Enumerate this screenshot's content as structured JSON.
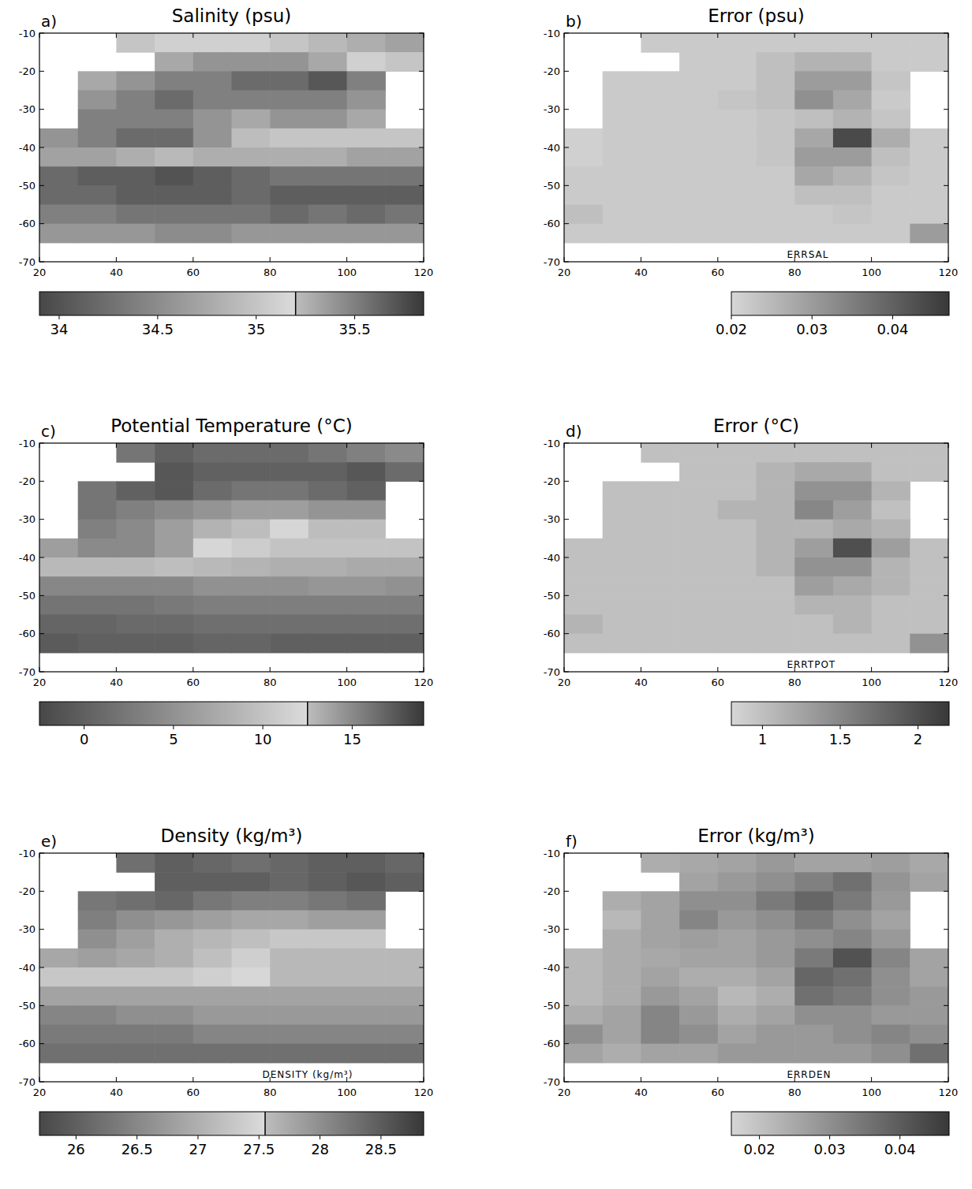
{
  "chart_data": [
    {
      "type": "heatmap",
      "title": "Salinity (psu)",
      "panel_label": "a)",
      "x": [
        25,
        35,
        45,
        55,
        65,
        75,
        85,
        95,
        105,
        115
      ],
      "y": [
        -12.5,
        -17.5,
        -22.5,
        -27.5,
        -32.5,
        -37.5,
        -42.5,
        -47.5,
        -52.5,
        -57.5,
        -62.5,
        -67.5
      ],
      "xlim": [
        20,
        120
      ],
      "ylim": [
        -70,
        -10
      ],
      "xticks": [
        20,
        40,
        60,
        80,
        100,
        120
      ],
      "yticks": [
        -10,
        -20,
        -30,
        -40,
        -50,
        -60,
        -70
      ],
      "colorbar_range": [
        33.9,
        35.85
      ],
      "colorbar_ticks": [
        34,
        34.5,
        35,
        35.5
      ],
      "colorbar_break": 35.2,
      "cells": [
        [
          null,
          null,
          35.0,
          35.1,
          35.1,
          35.1,
          35.0,
          34.9,
          34.8,
          34.7
        ],
        [
          null,
          null,
          null,
          35.3,
          35.4,
          35.4,
          35.4,
          35.3,
          35.1,
          35.0
        ],
        [
          null,
          35.3,
          35.4,
          35.5,
          35.5,
          35.6,
          35.6,
          35.7,
          35.5,
          null
        ],
        [
          null,
          35.4,
          35.5,
          35.6,
          35.5,
          35.5,
          35.5,
          35.5,
          35.4,
          null
        ],
        [
          null,
          35.5,
          35.5,
          35.5,
          35.4,
          35.3,
          35.4,
          35.4,
          35.3,
          null
        ],
        [
          35.4,
          35.5,
          35.6,
          35.6,
          35.4,
          35.2,
          35.0,
          35.0,
          35.0,
          35.0
        ],
        [
          34.7,
          34.7,
          34.8,
          34.9,
          34.8,
          34.8,
          34.8,
          34.8,
          34.7,
          34.7
        ],
        [
          34.2,
          34.1,
          34.1,
          34.0,
          34.1,
          34.2,
          34.3,
          34.3,
          34.3,
          34.3
        ],
        [
          34.2,
          34.2,
          34.1,
          34.1,
          34.1,
          34.2,
          34.1,
          34.1,
          34.1,
          34.1
        ],
        [
          34.4,
          34.4,
          34.3,
          34.3,
          34.3,
          34.3,
          34.2,
          34.3,
          34.2,
          34.3
        ],
        [
          34.6,
          34.6,
          34.6,
          34.5,
          34.5,
          34.6,
          34.6,
          34.6,
          34.6,
          34.6
        ],
        [
          null,
          null,
          null,
          null,
          null,
          null,
          null,
          null,
          null,
          null
        ]
      ]
    },
    {
      "type": "heatmap",
      "title": "Error (psu)",
      "panel_label": "b)",
      "annotation": "ERRSAL",
      "x": [
        25,
        35,
        45,
        55,
        65,
        75,
        85,
        95,
        105,
        115
      ],
      "y": [
        -12.5,
        -17.5,
        -22.5,
        -27.5,
        -32.5,
        -37.5,
        -42.5,
        -47.5,
        -52.5,
        -57.5,
        -62.5,
        -67.5
      ],
      "xlim": [
        20,
        120
      ],
      "ylim": [
        -70,
        -10
      ],
      "xticks": [
        20,
        40,
        60,
        80,
        100,
        120
      ],
      "yticks": [
        -10,
        -20,
        -30,
        -40,
        -50,
        -60,
        -70
      ],
      "colorbar_range": [
        0.02,
        0.047
      ],
      "colorbar_ticks": [
        0.02,
        0.03,
        0.04
      ],
      "cells": [
        [
          null,
          null,
          0.022,
          0.022,
          0.022,
          0.022,
          0.022,
          0.022,
          0.022,
          0.022
        ],
        [
          null,
          null,
          null,
          0.022,
          0.022,
          0.024,
          0.026,
          0.026,
          0.022,
          0.022
        ],
        [
          null,
          0.022,
          0.022,
          0.022,
          0.022,
          0.024,
          0.03,
          0.03,
          0.023,
          null
        ],
        [
          null,
          0.022,
          0.022,
          0.022,
          0.023,
          0.024,
          0.032,
          0.028,
          0.022,
          null
        ],
        [
          null,
          0.022,
          0.022,
          0.022,
          0.022,
          0.023,
          0.024,
          0.026,
          0.023,
          null
        ],
        [
          0.021,
          0.022,
          0.022,
          0.022,
          0.022,
          0.023,
          0.028,
          0.044,
          0.027,
          0.022
        ],
        [
          0.021,
          0.022,
          0.022,
          0.022,
          0.022,
          0.023,
          0.03,
          0.03,
          0.024,
          0.022
        ],
        [
          0.022,
          0.022,
          0.022,
          0.022,
          0.022,
          0.022,
          0.028,
          0.026,
          0.023,
          0.022
        ],
        [
          0.022,
          0.022,
          0.022,
          0.022,
          0.022,
          0.022,
          0.024,
          0.024,
          0.022,
          0.022
        ],
        [
          0.024,
          0.022,
          0.022,
          0.022,
          0.022,
          0.022,
          0.022,
          0.023,
          0.022,
          0.022
        ],
        [
          0.022,
          0.022,
          0.022,
          0.022,
          0.022,
          0.022,
          0.022,
          0.022,
          0.022,
          0.03
        ],
        [
          null,
          null,
          null,
          null,
          null,
          null,
          null,
          null,
          null,
          null
        ]
      ]
    },
    {
      "type": "heatmap",
      "title": "Potential Temperature (°C)",
      "panel_label": "c)",
      "x": [
        25,
        35,
        45,
        55,
        65,
        75,
        85,
        95,
        105,
        115
      ],
      "y": [
        -12.5,
        -17.5,
        -22.5,
        -27.5,
        -32.5,
        -37.5,
        -42.5,
        -47.5,
        -52.5,
        -57.5,
        -62.5,
        -67.5
      ],
      "xlim": [
        20,
        120
      ],
      "ylim": [
        -70,
        -10
      ],
      "xticks": [
        20,
        40,
        60,
        80,
        100,
        120
      ],
      "yticks": [
        -10,
        -20,
        -30,
        -40,
        -50,
        -60,
        -70
      ],
      "colorbar_range": [
        -2.5,
        19
      ],
      "colorbar_ticks": [
        0,
        5,
        10,
        15
      ],
      "colorbar_break": 12.5,
      "cells": [
        [
          null,
          null,
          16,
          17,
          16.5,
          16.5,
          16.5,
          16,
          15.5,
          15
        ],
        [
          null,
          null,
          null,
          17.5,
          17,
          17,
          17,
          17,
          17.5,
          16.5
        ],
        [
          null,
          16,
          17,
          17.5,
          16.5,
          16,
          16,
          16.5,
          17,
          null
        ],
        [
          null,
          16,
          15.5,
          15,
          14.5,
          14,
          14,
          14.5,
          14.5,
          null
        ],
        [
          null,
          15.5,
          15,
          14,
          13,
          12.5,
          12,
          12.5,
          12.5,
          null
        ],
        [
          14,
          15,
          15,
          14,
          12,
          11,
          10,
          10,
          10,
          10
        ],
        [
          9,
          9,
          9,
          9.5,
          9,
          8.5,
          8,
          8,
          7.5,
          7.5
        ],
        [
          4,
          4,
          4,
          4,
          5,
          5,
          5,
          5.5,
          5.5,
          5
        ],
        [
          2,
          2,
          2,
          2.5,
          3,
          3,
          3,
          3,
          3,
          3
        ],
        [
          0.5,
          0.5,
          1,
          1,
          1.5,
          1.5,
          1.5,
          1.5,
          1.5,
          1.5
        ],
        [
          -0.5,
          0,
          0,
          0,
          0.5,
          0.5,
          0,
          0,
          0,
          0
        ],
        [
          null,
          null,
          null,
          null,
          null,
          null,
          null,
          null,
          null,
          null
        ]
      ]
    },
    {
      "type": "heatmap",
      "title": "Error (°C)",
      "panel_label": "d)",
      "annotation": "ERRTPOT",
      "x": [
        25,
        35,
        45,
        55,
        65,
        75,
        85,
        95,
        105,
        115
      ],
      "y": [
        -12.5,
        -17.5,
        -22.5,
        -27.5,
        -32.5,
        -37.5,
        -42.5,
        -47.5,
        -52.5,
        -57.5,
        -62.5,
        -67.5
      ],
      "xlim": [
        20,
        120
      ],
      "ylim": [
        -70,
        -10
      ],
      "xticks": [
        20,
        40,
        60,
        80,
        100,
        120
      ],
      "yticks": [
        -10,
        -20,
        -30,
        -40,
        -50,
        -60,
        -70
      ],
      "colorbar_range": [
        0.8,
        2.2
      ],
      "colorbar_ticks": [
        1,
        1.5,
        2
      ],
      "cells": [
        [
          null,
          null,
          1.0,
          1.0,
          1.0,
          1.0,
          1.0,
          1.0,
          1.0,
          1.0
        ],
        [
          null,
          null,
          null,
          1.0,
          1.0,
          1.1,
          1.2,
          1.2,
          1.0,
          1.0
        ],
        [
          null,
          1.0,
          1.0,
          1.0,
          1.0,
          1.1,
          1.4,
          1.4,
          1.1,
          null
        ],
        [
          null,
          1.0,
          1.0,
          1.0,
          1.1,
          1.1,
          1.5,
          1.3,
          1.0,
          null
        ],
        [
          null,
          1.0,
          1.0,
          1.0,
          1.0,
          1.1,
          1.1,
          1.2,
          1.1,
          null
        ],
        [
          1.0,
          1.0,
          1.0,
          1.0,
          1.0,
          1.1,
          1.3,
          2.0,
          1.3,
          1.0
        ],
        [
          1.0,
          1.0,
          1.0,
          1.0,
          1.0,
          1.1,
          1.4,
          1.4,
          1.1,
          1.0
        ],
        [
          1.0,
          1.0,
          1.0,
          1.0,
          1.0,
          1.0,
          1.3,
          1.2,
          1.1,
          1.0
        ],
        [
          1.0,
          1.0,
          1.0,
          1.0,
          1.0,
          1.0,
          1.1,
          1.1,
          1.0,
          1.0
        ],
        [
          1.1,
          1.0,
          1.0,
          1.0,
          1.0,
          1.0,
          1.0,
          1.1,
          1.0,
          1.0
        ],
        [
          1.0,
          1.0,
          1.0,
          1.0,
          1.0,
          1.0,
          1.0,
          1.0,
          1.0,
          1.4
        ],
        [
          null,
          null,
          null,
          null,
          null,
          null,
          null,
          null,
          null,
          null
        ]
      ]
    },
    {
      "type": "heatmap",
      "title": "Density (kg/m³)",
      "panel_label": "e)",
      "annotation": "DENSITY (kg/m³)",
      "x": [
        25,
        35,
        45,
        55,
        65,
        75,
        85,
        95,
        105,
        115
      ],
      "y": [
        -12.5,
        -17.5,
        -22.5,
        -27.5,
        -32.5,
        -37.5,
        -42.5,
        -47.5,
        -52.5,
        -57.5,
        -62.5,
        -67.5
      ],
      "xlim": [
        20,
        120
      ],
      "ylim": [
        -70,
        -10
      ],
      "xticks": [
        20,
        40,
        60,
        80,
        100,
        120
      ],
      "yticks": [
        -10,
        -20,
        -30,
        -40,
        -50,
        -60,
        -70
      ],
      "colorbar_range": [
        25.7,
        28.85
      ],
      "colorbar_ticks": [
        26,
        26.5,
        27,
        27.5,
        28,
        28.5
      ],
      "colorbar_break": 27.55,
      "cells": [
        [
          null,
          null,
          26.2,
          26.0,
          26.1,
          26.2,
          26.1,
          26.0,
          26.0,
          26.1
        ],
        [
          null,
          null,
          null,
          26.0,
          26.0,
          26.0,
          26.1,
          26.0,
          25.9,
          26.0
        ],
        [
          null,
          26.3,
          26.2,
          26.1,
          26.3,
          26.4,
          26.4,
          26.3,
          26.2,
          null
        ],
        [
          null,
          26.4,
          26.6,
          26.7,
          26.8,
          26.9,
          26.9,
          26.8,
          26.8,
          null
        ],
        [
          null,
          26.6,
          26.8,
          27.0,
          27.1,
          27.2,
          27.3,
          27.3,
          27.3,
          null
        ],
        [
          26.9,
          26.8,
          26.9,
          27.0,
          27.2,
          27.4,
          27.6,
          27.6,
          27.6,
          27.6
        ],
        [
          27.3,
          27.3,
          27.3,
          27.3,
          27.4,
          27.5,
          27.6,
          27.6,
          27.6,
          27.6
        ],
        [
          27.8,
          27.8,
          27.8,
          27.8,
          27.8,
          27.8,
          27.8,
          27.8,
          27.8,
          27.8
        ],
        [
          28.1,
          28.1,
          28.0,
          28.0,
          27.9,
          27.9,
          27.9,
          27.9,
          27.9,
          27.9
        ],
        [
          28.2,
          28.2,
          28.2,
          28.2,
          28.1,
          28.1,
          28.1,
          28.1,
          28.1,
          28.1
        ],
        [
          28.3,
          28.3,
          28.3,
          28.3,
          28.3,
          28.3,
          28.3,
          28.3,
          28.3,
          28.3
        ],
        [
          null,
          null,
          null,
          null,
          null,
          null,
          null,
          null,
          null,
          null
        ]
      ]
    },
    {
      "type": "heatmap",
      "title": "Error (kg/m³)",
      "panel_label": "f)",
      "annotation": "ERRDEN",
      "x": [
        25,
        35,
        45,
        55,
        65,
        75,
        85,
        95,
        105,
        115
      ],
      "y": [
        -12.5,
        -17.5,
        -22.5,
        -27.5,
        -32.5,
        -37.5,
        -42.5,
        -47.5,
        -52.5,
        -57.5,
        -62.5,
        -67.5
      ],
      "xlim": [
        20,
        120
      ],
      "ylim": [
        -70,
        -10
      ],
      "xticks": [
        20,
        40,
        60,
        80,
        100,
        120
      ],
      "yticks": [
        -10,
        -20,
        -30,
        -40,
        -50,
        -60,
        -70
      ],
      "colorbar_range": [
        0.016,
        0.047
      ],
      "colorbar_ticks": [
        0.02,
        0.03,
        0.04
      ],
      "cells": [
        [
          null,
          null,
          0.024,
          0.025,
          0.026,
          0.028,
          0.026,
          0.026,
          0.027,
          0.025
        ],
        [
          null,
          null,
          null,
          0.026,
          0.028,
          0.03,
          0.033,
          0.036,
          0.029,
          0.026
        ],
        [
          null,
          0.024,
          0.026,
          0.03,
          0.03,
          0.034,
          0.038,
          0.034,
          0.028,
          null
        ],
        [
          null,
          0.022,
          0.026,
          0.032,
          0.028,
          0.03,
          0.034,
          0.03,
          0.026,
          null
        ],
        [
          null,
          0.024,
          0.026,
          0.027,
          0.026,
          0.028,
          0.03,
          0.032,
          0.028,
          null
        ],
        [
          0.022,
          0.024,
          0.025,
          0.026,
          0.026,
          0.028,
          0.034,
          0.042,
          0.032,
          0.026
        ],
        [
          0.022,
          0.024,
          0.026,
          0.024,
          0.024,
          0.026,
          0.038,
          0.036,
          0.03,
          0.026
        ],
        [
          0.022,
          0.024,
          0.028,
          0.026,
          0.022,
          0.024,
          0.036,
          0.034,
          0.03,
          0.028
        ],
        [
          0.024,
          0.026,
          0.032,
          0.028,
          0.024,
          0.026,
          0.03,
          0.03,
          0.028,
          0.028
        ],
        [
          0.03,
          0.026,
          0.032,
          0.03,
          0.026,
          0.028,
          0.028,
          0.03,
          0.032,
          0.03
        ],
        [
          0.026,
          0.024,
          0.026,
          0.026,
          0.028,
          0.028,
          0.028,
          0.028,
          0.03,
          0.036
        ],
        [
          null,
          null,
          null,
          null,
          null,
          null,
          null,
          null,
          null,
          null
        ]
      ]
    }
  ]
}
